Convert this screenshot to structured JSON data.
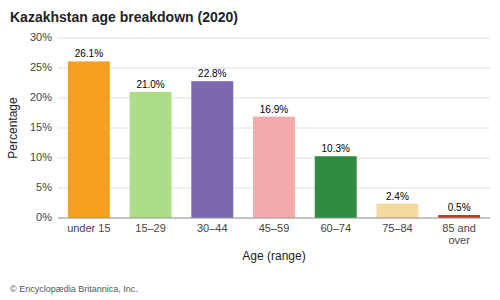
{
  "chart_data": {
    "type": "bar",
    "title": "Kazakhstan age breakdown (2020)",
    "categories": [
      "under 15",
      "15–29",
      "30–44",
      "45–59",
      "60–74",
      "75–84",
      "85 and\nover"
    ],
    "values": [
      26.1,
      21.0,
      22.8,
      16.9,
      10.3,
      2.4,
      0.5
    ],
    "value_labels": [
      "26.1%",
      "21.0%",
      "22.8%",
      "16.9%",
      "10.3%",
      "2.4%",
      "0.5%"
    ],
    "colors": [
      "#F5A020",
      "#AEDD8A",
      "#7B68AE",
      "#F4AAAA",
      "#2E8B40",
      "#F5D9A0",
      "#C0392B"
    ],
    "xlabel": "Age (range)",
    "ylabel": "Percentage",
    "ylim": [
      0,
      30
    ],
    "yticks": [
      {
        "value": 0,
        "label": "0%"
      },
      {
        "value": 5,
        "label": "5%"
      },
      {
        "value": 10,
        "label": "10%"
      },
      {
        "value": 15,
        "label": "15%"
      },
      {
        "value": 20,
        "label": "20%"
      },
      {
        "value": 25,
        "label": "25%"
      },
      {
        "value": 30,
        "label": "30%"
      }
    ],
    "grid": true,
    "data_labels": true,
    "annotations": [
      "© Encyclopædia Britannica, Inc."
    ]
  }
}
